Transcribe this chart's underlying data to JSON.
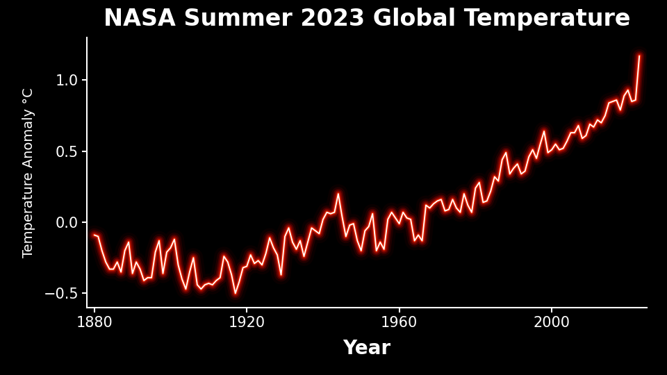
{
  "title": "NASA Summer 2023 Global Temperature",
  "xlabel": "Year",
  "ylabel": "Temperature Anomaly °C",
  "background_color": "#000000",
  "text_color": "#ffffff",
  "ylim": [
    -0.6,
    1.3
  ],
  "xlim": [
    1878,
    2025
  ],
  "yticks": [
    -0.5,
    0.0,
    0.5,
    1.0
  ],
  "xticks": [
    1880,
    1920,
    1960,
    2000
  ],
  "years": [
    1880,
    1881,
    1882,
    1883,
    1884,
    1885,
    1886,
    1887,
    1888,
    1889,
    1890,
    1891,
    1892,
    1893,
    1894,
    1895,
    1896,
    1897,
    1898,
    1899,
    1900,
    1901,
    1902,
    1903,
    1904,
    1905,
    1906,
    1907,
    1908,
    1909,
    1910,
    1911,
    1912,
    1913,
    1914,
    1915,
    1916,
    1917,
    1918,
    1919,
    1920,
    1921,
    1922,
    1923,
    1924,
    1925,
    1926,
    1927,
    1928,
    1929,
    1930,
    1931,
    1932,
    1933,
    1934,
    1935,
    1936,
    1937,
    1938,
    1939,
    1940,
    1941,
    1942,
    1943,
    1944,
    1945,
    1946,
    1947,
    1948,
    1949,
    1950,
    1951,
    1952,
    1953,
    1954,
    1955,
    1956,
    1957,
    1958,
    1959,
    1960,
    1961,
    1962,
    1963,
    1964,
    1965,
    1966,
    1967,
    1968,
    1969,
    1970,
    1971,
    1972,
    1973,
    1974,
    1975,
    1976,
    1977,
    1978,
    1979,
    1980,
    1981,
    1982,
    1983,
    1984,
    1985,
    1986,
    1987,
    1988,
    1989,
    1990,
    1991,
    1992,
    1993,
    1994,
    1995,
    1996,
    1997,
    1998,
    1999,
    2000,
    2001,
    2002,
    2003,
    2004,
    2005,
    2006,
    2007,
    2008,
    2009,
    2010,
    2011,
    2012,
    2013,
    2014,
    2015,
    2016,
    2017,
    2018,
    2019,
    2020,
    2021,
    2022,
    2023
  ],
  "anomalies": [
    -0.09,
    -0.1,
    -0.2,
    -0.28,
    -0.33,
    -0.33,
    -0.28,
    -0.35,
    -0.2,
    -0.14,
    -0.36,
    -0.28,
    -0.33,
    -0.41,
    -0.39,
    -0.39,
    -0.21,
    -0.13,
    -0.36,
    -0.21,
    -0.18,
    -0.12,
    -0.3,
    -0.4,
    -0.47,
    -0.35,
    -0.25,
    -0.44,
    -0.47,
    -0.44,
    -0.43,
    -0.44,
    -0.41,
    -0.39,
    -0.24,
    -0.28,
    -0.37,
    -0.5,
    -0.42,
    -0.32,
    -0.31,
    -0.23,
    -0.29,
    -0.27,
    -0.3,
    -0.22,
    -0.11,
    -0.18,
    -0.23,
    -0.37,
    -0.1,
    -0.04,
    -0.14,
    -0.19,
    -0.13,
    -0.24,
    -0.14,
    -0.04,
    -0.06,
    -0.08,
    0.02,
    0.07,
    0.06,
    0.07,
    0.2,
    0.04,
    -0.1,
    -0.02,
    -0.01,
    -0.13,
    -0.2,
    -0.06,
    -0.03,
    0.06,
    -0.2,
    -0.14,
    -0.19,
    0.02,
    0.07,
    0.03,
    -0.01,
    0.07,
    0.03,
    0.02,
    -0.13,
    -0.09,
    -0.13,
    0.12,
    0.1,
    0.13,
    0.15,
    0.16,
    0.08,
    0.09,
    0.16,
    0.1,
    0.07,
    0.2,
    0.12,
    0.07,
    0.24,
    0.28,
    0.14,
    0.15,
    0.22,
    0.32,
    0.29,
    0.44,
    0.49,
    0.34,
    0.38,
    0.41,
    0.34,
    0.36,
    0.46,
    0.51,
    0.45,
    0.55,
    0.64,
    0.49,
    0.51,
    0.55,
    0.51,
    0.52,
    0.57,
    0.63,
    0.63,
    0.68,
    0.59,
    0.61,
    0.69,
    0.67,
    0.72,
    0.7,
    0.75,
    0.84,
    0.85,
    0.86,
    0.79,
    0.89,
    0.93,
    0.85,
    0.86,
    1.17
  ]
}
